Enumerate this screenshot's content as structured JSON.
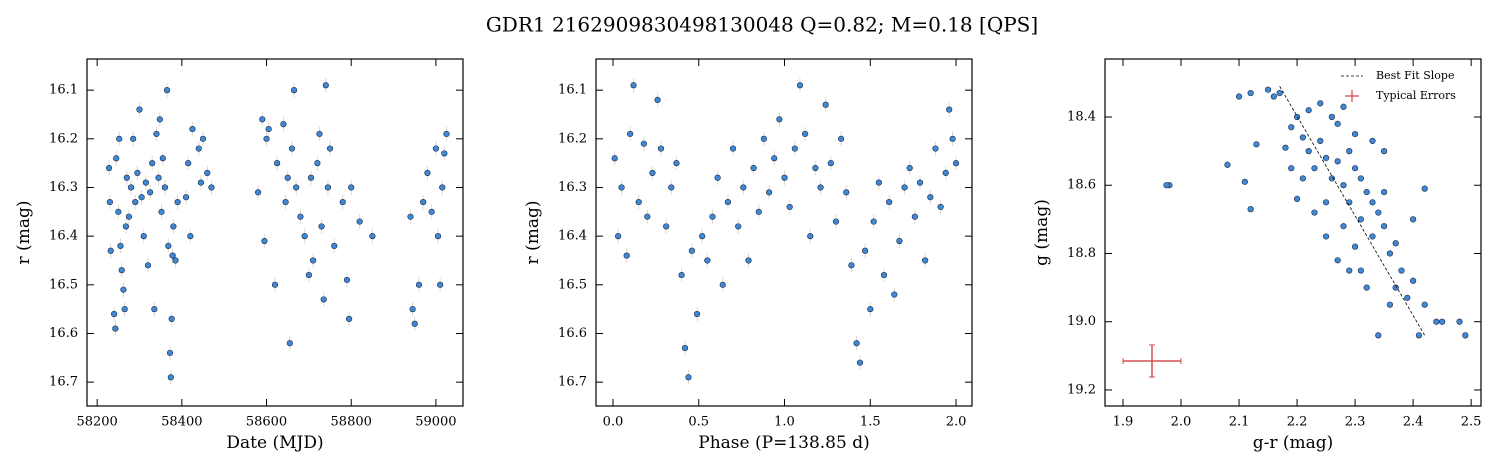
{
  "title": "GDR1 2162909830498130048  Q=0.82; M=0.18 [QPS]",
  "chart_data": [
    {
      "type": "scatter",
      "xlabel": "Date (MJD)",
      "ylabel": "r (mag)",
      "xlim": [
        58176,
        59064
      ],
      "ylim": [
        16.749,
        16.036
      ],
      "xticks": [
        58200,
        58400,
        58600,
        58800,
        59000
      ],
      "yticks": [
        16.1,
        16.2,
        16.3,
        16.4,
        16.5,
        16.6,
        16.7
      ],
      "color": "#3f88d8",
      "edgecolor": "#1a2a40",
      "yerr": 0.015,
      "errcolor": "#dedad0",
      "x": [
        58228,
        58230,
        58232,
        58240,
        58243,
        58245,
        58250,
        58252,
        58255,
        58258,
        58262,
        58265,
        58268,
        58270,
        58275,
        58280,
        58285,
        58290,
        58295,
        58300,
        58305,
        58310,
        58315,
        58320,
        58325,
        58330,
        58335,
        58340,
        58345,
        58348,
        58352,
        58355,
        58360,
        58365,
        58368,
        58372,
        58374,
        58376,
        58378,
        58380,
        58385,
        58390,
        58410,
        58415,
        58420,
        58425,
        58440,
        58445,
        58450,
        58460,
        58470,
        58580,
        58590,
        58595,
        58600,
        58605,
        58620,
        58625,
        58640,
        58645,
        58650,
        58655,
        58660,
        58665,
        58670,
        58680,
        58690,
        58700,
        58705,
        58710,
        58720,
        58725,
        58730,
        58735,
        58740,
        58745,
        58750,
        58760,
        58780,
        58790,
        58795,
        58800,
        58820,
        58850,
        58940,
        58945,
        58950,
        58960,
        58970,
        58980,
        58990,
        59000,
        59005,
        59010,
        59015,
        59020,
        59025
      ],
      "values": [
        16.26,
        16.33,
        16.43,
        16.56,
        16.59,
        16.24,
        16.35,
        16.2,
        16.42,
        16.47,
        16.51,
        16.55,
        16.38,
        16.28,
        16.36,
        16.3,
        16.2,
        16.33,
        16.27,
        16.14,
        16.32,
        16.4,
        16.29,
        16.46,
        16.31,
        16.25,
        16.55,
        16.19,
        16.28,
        16.16,
        16.35,
        16.24,
        16.3,
        16.1,
        16.42,
        16.64,
        16.69,
        16.57,
        16.44,
        16.38,
        16.45,
        16.33,
        16.32,
        16.25,
        16.4,
        16.18,
        16.22,
        16.29,
        16.2,
        16.27,
        16.3,
        16.31,
        16.16,
        16.41,
        16.2,
        16.18,
        16.5,
        16.25,
        16.17,
        16.33,
        16.28,
        16.62,
        16.22,
        16.1,
        16.3,
        16.36,
        16.4,
        16.48,
        16.28,
        16.45,
        16.25,
        16.19,
        16.38,
        16.53,
        16.09,
        16.3,
        16.22,
        16.42,
        16.33,
        16.49,
        16.57,
        16.3,
        16.37,
        16.4,
        16.36,
        16.55,
        16.58,
        16.5,
        16.33,
        16.27,
        16.35,
        16.22,
        16.4,
        16.5,
        16.3,
        16.23,
        16.19
      ]
    },
    {
      "type": "scatter",
      "xlabel": "Phase (P=138.85 d)",
      "ylabel": "r (mag)",
      "xlim": [
        -0.099,
        2.093
      ],
      "ylim": [
        16.749,
        16.036
      ],
      "xticks": [
        {
          "value": 0,
          "label": "0.0"
        },
        0.5,
        {
          "value": 1,
          "label": "1.0"
        },
        1.5,
        {
          "value": 2,
          "label": "2.0"
        }
      ],
      "yticks": [
        16.1,
        16.2,
        16.3,
        16.4,
        16.5,
        16.6,
        16.7
      ],
      "color": "#3f88d8",
      "edgecolor": "#1a2a40",
      "yerr": 0.015,
      "errcolor": "#dedad0",
      "x": [
        0.01,
        0.03,
        0.05,
        0.08,
        0.1,
        0.12,
        0.15,
        0.18,
        0.2,
        0.23,
        0.26,
        0.28,
        0.31,
        0.34,
        0.37,
        0.4,
        0.42,
        0.44,
        0.46,
        0.49,
        0.52,
        0.55,
        0.58,
        0.61,
        0.64,
        0.67,
        0.7,
        0.73,
        0.76,
        0.79,
        0.82,
        0.85,
        0.88,
        0.91,
        0.94,
        0.97,
        1.0,
        1.03,
        1.06,
        1.09,
        1.12,
        1.15,
        1.18,
        1.21,
        1.24,
        1.27,
        1.3,
        1.33,
        1.36,
        1.39,
        1.42,
        1.44,
        1.47,
        1.5,
        1.52,
        1.55,
        1.58,
        1.61,
        1.64,
        1.67,
        1.7,
        1.73,
        1.76,
        1.79,
        1.82,
        1.85,
        1.88,
        1.91,
        1.94,
        1.96,
        1.98,
        2.0
      ],
      "values": [
        16.24,
        16.4,
        16.3,
        16.44,
        16.19,
        16.09,
        16.33,
        16.21,
        16.36,
        16.27,
        16.12,
        16.22,
        16.38,
        16.3,
        16.25,
        16.48,
        16.63,
        16.69,
        16.43,
        16.56,
        16.4,
        16.45,
        16.36,
        16.28,
        16.5,
        16.33,
        16.22,
        16.38,
        16.3,
        16.45,
        16.26,
        16.35,
        16.2,
        16.31,
        16.24,
        16.16,
        16.28,
        16.34,
        16.22,
        16.09,
        16.19,
        16.4,
        16.26,
        16.3,
        16.13,
        16.25,
        16.37,
        16.2,
        16.31,
        16.46,
        16.62,
        16.66,
        16.43,
        16.55,
        16.37,
        16.29,
        16.48,
        16.33,
        16.52,
        16.41,
        16.3,
        16.26,
        16.36,
        16.29,
        16.45,
        16.32,
        16.22,
        16.34,
        16.27,
        16.14,
        16.2,
        16.25
      ]
    },
    {
      "type": "scatter",
      "xlabel": "g-r (mag)",
      "ylabel": "g (mag)",
      "xlim": [
        1.869,
        2.517
      ],
      "ylim": [
        19.247,
        18.23
      ],
      "xticks": [
        1.9,
        {
          "value": 2,
          "label": "2.0"
        },
        2.1,
        2.2,
        2.3,
        2.4,
        2.5
      ],
      "yticks": [
        18.4,
        18.6,
        18.8,
        {
          "value": 19,
          "label": "19.0"
        },
        19.2
      ],
      "color": "#3f88d8",
      "edgecolor": "#1a2a40",
      "legend": "upper right",
      "x": [
        2.1,
        2.12,
        2.15,
        2.16,
        2.17,
        1.98,
        1.975,
        2.08,
        2.11,
        2.12,
        2.13,
        2.18,
        2.19,
        2.2,
        2.21,
        2.22,
        2.23,
        2.24,
        2.25,
        2.26,
        2.27,
        2.28,
        2.29,
        2.3,
        2.31,
        2.32,
        2.33,
        2.34,
        2.35,
        2.36,
        2.37,
        2.38,
        2.4,
        2.42,
        2.39,
        2.22,
        2.24,
        2.26,
        2.28,
        2.3,
        2.33,
        2.35,
        2.25,
        2.27,
        2.29,
        2.31,
        2.2,
        2.23,
        2.21,
        2.19,
        2.32,
        2.36,
        2.34,
        2.42,
        2.44,
        2.45,
        2.48,
        2.49,
        2.41,
        2.4,
        2.35,
        2.28,
        2.25,
        2.3,
        2.37,
        2.29,
        2.27,
        2.31,
        2.33
      ],
      "values": [
        18.34,
        18.33,
        18.32,
        18.34,
        18.33,
        18.6,
        18.6,
        18.54,
        18.59,
        18.67,
        18.48,
        18.49,
        18.43,
        18.4,
        18.46,
        18.5,
        18.55,
        18.47,
        18.52,
        18.58,
        18.42,
        18.6,
        18.65,
        18.55,
        18.7,
        18.62,
        18.75,
        18.68,
        18.72,
        18.8,
        18.77,
        18.85,
        18.88,
        18.61,
        18.93,
        18.38,
        18.36,
        18.4,
        18.37,
        18.45,
        18.47,
        18.5,
        18.75,
        18.82,
        18.85,
        18.85,
        18.64,
        18.68,
        18.58,
        18.55,
        18.9,
        18.95,
        19.04,
        18.95,
        19.0,
        19.0,
        19.0,
        19.04,
        19.04,
        18.7,
        18.62,
        18.72,
        18.65,
        18.78,
        18.9,
        18.5,
        18.53,
        18.58,
        18.65
      ],
      "fit": {
        "name": "Best Fit Slope",
        "x": [
          2.17,
          2.42
        ],
        "values": [
          18.31,
          19.04
        ],
        "color": "#000000"
      },
      "typical_error": {
        "name": "Typical Errors",
        "x": 1.95,
        "y": 19.115,
        "xerr": 0.05,
        "yerr": 0.047,
        "color": "#d05050"
      }
    }
  ]
}
